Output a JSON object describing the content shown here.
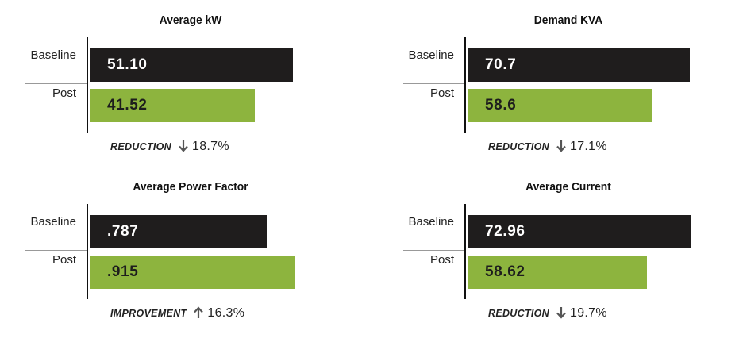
{
  "colors": {
    "baseline": "#1f1d1d",
    "post": "#8db43e",
    "axis": "#111111",
    "arrow": "#555555"
  },
  "labels": {
    "baseline": "Baseline",
    "post": "Post"
  },
  "chart_data": [
    {
      "type": "bar",
      "orientation": "horizontal",
      "title": "Average kW",
      "categories": [
        "Baseline",
        "Post"
      ],
      "values": [
        51.1,
        41.52
      ],
      "value_labels": [
        "51.10",
        "41.52"
      ],
      "xlim": [
        0,
        68
      ],
      "summary": {
        "word": "REDUCTION",
        "direction": "down",
        "arrow_icon": "arrow-down-icon",
        "percent": "18.7%"
      }
    },
    {
      "type": "bar",
      "orientation": "horizontal",
      "title": "Demand KVA",
      "categories": [
        "Baseline",
        "Post"
      ],
      "values": [
        70.7,
        58.6
      ],
      "value_labels": [
        "70.7",
        "58.6"
      ],
      "xlim": [
        0,
        86
      ],
      "summary": {
        "word": "REDUCTION",
        "direction": "down",
        "arrow_icon": "arrow-down-icon",
        "percent": "17.1%"
      }
    },
    {
      "type": "bar",
      "orientation": "horizontal",
      "title": "Average Power Factor",
      "categories": [
        "Baseline",
        "Post"
      ],
      "values": [
        0.787,
        0.915
      ],
      "value_labels": [
        ".787",
        ".915"
      ],
      "xlim": [
        0,
        1.2
      ],
      "summary": {
        "word": "IMPROVEMENT",
        "direction": "up",
        "arrow_icon": "arrow-up-icon",
        "percent": "16.3%"
      }
    },
    {
      "type": "bar",
      "orientation": "horizontal",
      "title": "Average Current",
      "categories": [
        "Baseline",
        "Post"
      ],
      "values": [
        72.96,
        58.62
      ],
      "value_labels": [
        "72.96",
        "58.62"
      ],
      "xlim": [
        0,
        88
      ],
      "summary": {
        "word": "REDUCTION",
        "direction": "down",
        "arrow_icon": "arrow-down-icon",
        "percent": "19.7%"
      }
    }
  ]
}
